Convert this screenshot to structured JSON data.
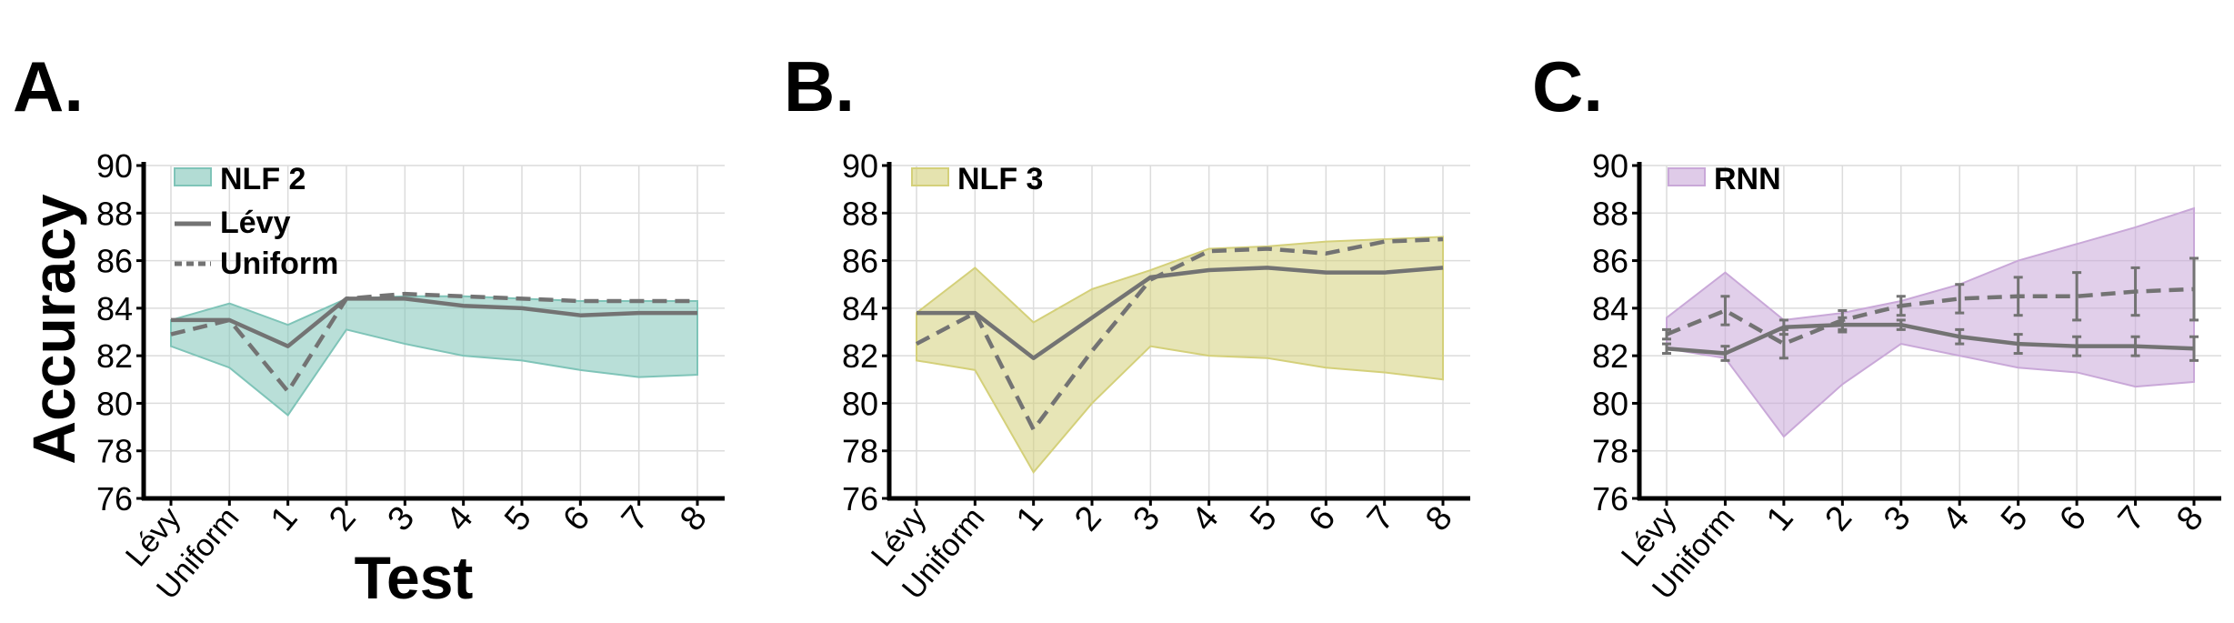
{
  "figure": {
    "ylabel": "Accuracy",
    "xlabel": "Test",
    "legend_levy": "Lévy",
    "legend_uniform": "Uniform"
  },
  "chart_data": [
    {
      "type": "line",
      "panel": "A.",
      "categories": [
        "Lévy",
        "Uniform",
        "1",
        "2",
        "3",
        "4",
        "5",
        "6",
        "7",
        "8"
      ],
      "ylim": [
        76,
        90
      ],
      "yticks": [
        76,
        78,
        80,
        82,
        84,
        86,
        88,
        90
      ],
      "grid": true,
      "legend_position": "top-left",
      "band_label": "NLF 2",
      "band_color": "#7fc4b8",
      "band": {
        "upper": [
          83.5,
          84.2,
          83.3,
          84.4,
          84.5,
          84.5,
          84.4,
          84.3,
          84.3,
          84.3
        ],
        "lower": [
          82.4,
          81.5,
          79.5,
          83.1,
          82.5,
          82.0,
          81.8,
          81.4,
          81.1,
          81.2
        ]
      },
      "series": [
        {
          "name": "Lévy",
          "style": "solid",
          "values": [
            83.5,
            83.5,
            82.4,
            84.4,
            84.4,
            84.1,
            84.0,
            83.7,
            83.8,
            83.8
          ]
        },
        {
          "name": "Uniform",
          "style": "dashed",
          "values": [
            82.9,
            83.5,
            80.5,
            84.4,
            84.6,
            84.5,
            84.4,
            84.3,
            84.3,
            84.3
          ]
        }
      ]
    },
    {
      "type": "line",
      "panel": "B.",
      "categories": [
        "Lévy",
        "Uniform",
        "1",
        "2",
        "3",
        "4",
        "5",
        "6",
        "7",
        "8"
      ],
      "ylim": [
        76,
        90
      ],
      "yticks": [
        76,
        78,
        80,
        82,
        84,
        86,
        88,
        90
      ],
      "grid": true,
      "legend_position": "top-left",
      "band_label": "NLF 3",
      "band_color": "#d4d07a",
      "band": {
        "upper": [
          83.8,
          85.7,
          83.4,
          84.8,
          85.6,
          86.5,
          86.6,
          86.8,
          86.9,
          87.0
        ],
        "lower": [
          81.8,
          81.4,
          77.1,
          80.0,
          82.4,
          82.0,
          81.9,
          81.5,
          81.3,
          81.0
        ]
      },
      "series": [
        {
          "name": "Lévy",
          "style": "solid",
          "values": [
            83.8,
            83.8,
            81.9,
            83.6,
            85.3,
            85.6,
            85.7,
            85.5,
            85.5,
            85.7
          ]
        },
        {
          "name": "Uniform",
          "style": "dashed",
          "values": [
            82.5,
            83.8,
            78.9,
            82.2,
            85.2,
            86.4,
            86.5,
            86.3,
            86.8,
            86.9
          ]
        }
      ]
    },
    {
      "type": "line",
      "panel": "C.",
      "categories": [
        "Lévy",
        "Uniform",
        "1",
        "2",
        "3",
        "4",
        "5",
        "6",
        "7",
        "8"
      ],
      "ylim": [
        76,
        90
      ],
      "yticks": [
        76,
        78,
        80,
        82,
        84,
        86,
        88,
        90
      ],
      "grid": true,
      "legend_position": "top-left",
      "band_label": "RNN",
      "band_color": "#c9a8d8",
      "band": {
        "upper": [
          83.6,
          85.5,
          83.5,
          83.8,
          84.3,
          85.0,
          86.0,
          86.7,
          87.4,
          88.2
        ],
        "lower": [
          82.3,
          81.9,
          78.6,
          80.8,
          82.5,
          82.0,
          81.5,
          81.3,
          80.7,
          80.9
        ]
      },
      "series": [
        {
          "name": "Lévy",
          "style": "solid",
          "values": [
            82.3,
            82.1,
            83.2,
            83.3,
            83.3,
            82.8,
            82.5,
            82.4,
            82.4,
            82.3
          ],
          "err": [
            0.2,
            0.3,
            0.3,
            0.3,
            0.2,
            0.3,
            0.4,
            0.4,
            0.4,
            0.5
          ]
        },
        {
          "name": "Uniform",
          "style": "dashed",
          "values": [
            82.9,
            83.9,
            82.5,
            83.5,
            84.1,
            84.4,
            84.5,
            84.5,
            84.7,
            84.8
          ],
          "err": [
            0.2,
            0.6,
            0.6,
            0.4,
            0.4,
            0.6,
            0.8,
            1.0,
            1.0,
            1.3
          ]
        }
      ]
    }
  ]
}
